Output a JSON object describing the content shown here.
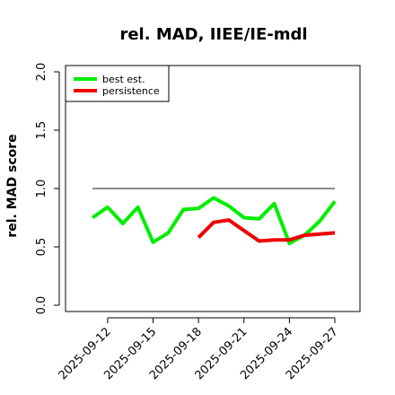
{
  "chart_data": {
    "type": "line",
    "title": "rel. MAD, IIEE/IE-mdl",
    "ylabel": "rel. MAD score",
    "xlabel": "",
    "ylim": [
      0.0,
      2.0
    ],
    "y_ticks": [
      "0.0",
      "0.5",
      "1.0",
      "1.5",
      "2.0"
    ],
    "x": [
      "2025-09-11",
      "2025-09-12",
      "2025-09-13",
      "2025-09-14",
      "2025-09-15",
      "2025-09-16",
      "2025-09-17",
      "2025-09-18",
      "2025-09-19",
      "2025-09-20",
      "2025-09-21",
      "2025-09-22",
      "2025-09-23",
      "2025-09-24",
      "2025-09-25",
      "2025-09-26",
      "2025-09-27"
    ],
    "x_tick_labels": [
      "2025-09-12",
      "2025-09-15",
      "2025-09-18",
      "2025-09-21",
      "2025-09-24",
      "2025-09-27"
    ],
    "reference_line": 1.0,
    "legend_position": "top-left",
    "series": [
      {
        "name": "best est.",
        "color": "#00ee00",
        "values": [
          0.75,
          0.84,
          0.7,
          0.84,
          0.54,
          0.62,
          0.82,
          0.83,
          0.92,
          0.85,
          0.75,
          0.74,
          0.87,
          0.53,
          0.6,
          0.72,
          0.89
        ]
      },
      {
        "name": "persistence",
        "color": "#ee0000",
        "values": [
          null,
          null,
          null,
          null,
          null,
          null,
          null,
          0.58,
          0.71,
          0.73,
          0.64,
          0.55,
          0.56,
          0.56,
          0.6,
          0.61,
          0.62
        ]
      }
    ]
  }
}
